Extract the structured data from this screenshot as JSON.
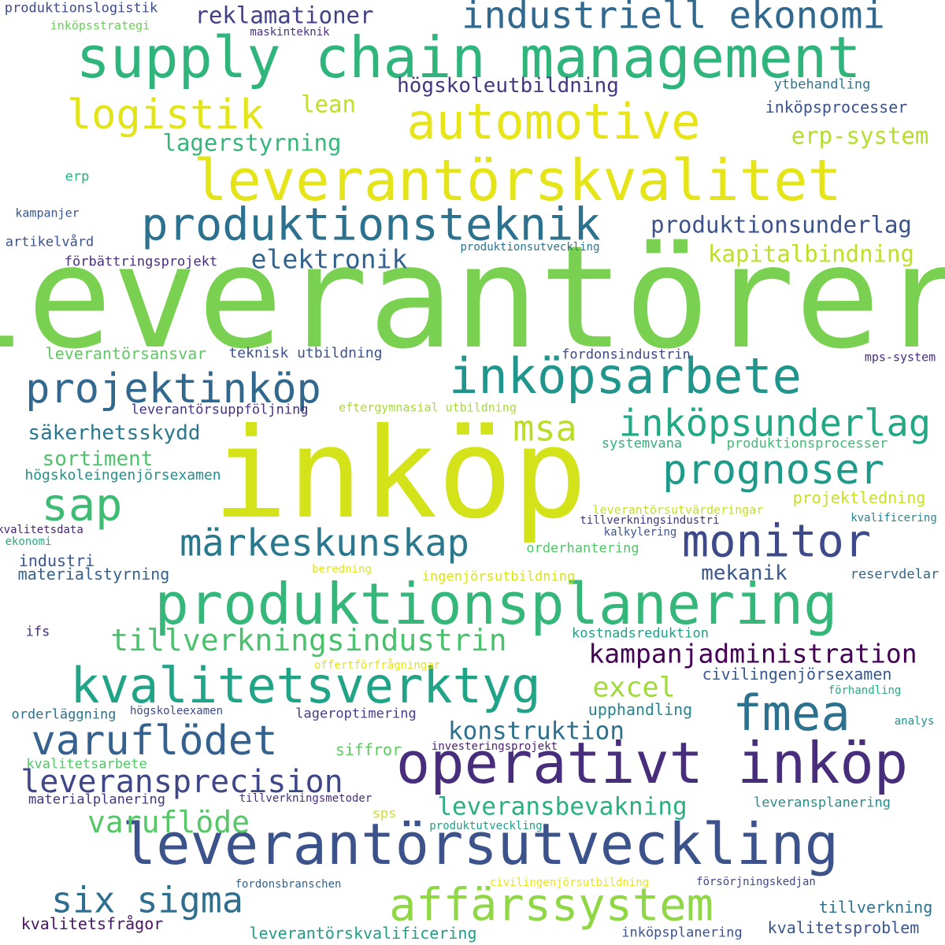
{
  "palette": {
    "dark_purple": "#46327e",
    "indigo": "#3b528b",
    "blue": "#2c728e",
    "teal": "#21918c",
    "green_teal": "#28ae80",
    "green": "#5ec962",
    "light_green": "#addc30",
    "yellow": "#dde318",
    "deep_purple": "#440154"
  },
  "words": [
    {
      "text": "leverantörer",
      "color": "#7ad151"
    },
    {
      "text": "inköp",
      "color": "#d4e21a"
    },
    {
      "text": "supply chain management",
      "color": "#2fb47c"
    },
    {
      "text": "leverantörskvalitet",
      "color": "#e5e419"
    },
    {
      "text": "produktionsplanering",
      "color": "#35b779"
    },
    {
      "text": "leverantörsutveckling",
      "color": "#3b528b"
    },
    {
      "text": "operativt inköp",
      "color": "#472d7b"
    },
    {
      "text": "automotive",
      "color": "#e7e419"
    },
    {
      "text": "inköpsarbete",
      "color": "#1f958b"
    },
    {
      "text": "kvalitetsverktyg",
      "color": "#20a386"
    },
    {
      "text": "fmea",
      "color": "#2c728e"
    },
    {
      "text": "produktionsteknik",
      "color": "#2c728e"
    },
    {
      "text": "affärssystem",
      "color": "#8fd744"
    },
    {
      "text": "monitor",
      "color": "#3e4989"
    },
    {
      "text": "projektinköp",
      "color": "#31688e"
    },
    {
      "text": "industriell ekonomi",
      "color": "#31688e"
    },
    {
      "text": "logistik",
      "color": "#e2e418"
    },
    {
      "text": "sap",
      "color": "#3dbc74"
    },
    {
      "text": "prognoser",
      "color": "#1f9a8a"
    },
    {
      "text": "varuflödet",
      "color": "#34618d"
    },
    {
      "text": "märkeskunskap",
      "color": "#2a788e"
    },
    {
      "text": "inköpsunderlag",
      "color": "#22a884"
    },
    {
      "text": "six sigma",
      "color": "#2e6e8e"
    },
    {
      "text": "msa",
      "color": "#bade28"
    },
    {
      "text": "leveransprecision",
      "color": "#3f4788"
    },
    {
      "text": "tillverkningsindustrin",
      "color": "#4ac16d"
    },
    {
      "text": "varuflöde",
      "color": "#56c667"
    },
    {
      "text": "kampanjadministration",
      "color": "#440154"
    },
    {
      "text": "elektronik",
      "color": "#33638d"
    },
    {
      "text": "excel",
      "color": "#a0da39"
    },
    {
      "text": "konstruktion",
      "color": "#2d708e"
    },
    {
      "text": "leveransbevakning",
      "color": "#2ab07f"
    },
    {
      "text": "produktionsunderlag",
      "color": "#3b528b"
    },
    {
      "text": "kapitalbindning",
      "color": "#bddf26"
    },
    {
      "text": "erp-system",
      "color": "#b5de2b"
    },
    {
      "text": "lagerstyrning",
      "color": "#35b779"
    },
    {
      "text": "reklamationer",
      "color": "#424086"
    },
    {
      "text": "högskoleutbildning",
      "color": "#453781"
    },
    {
      "text": "lean",
      "color": "#c2df23"
    },
    {
      "text": "säkerhetsskydd",
      "color": "#2a788e"
    },
    {
      "text": "sortiment",
      "color": "#4ec36b"
    },
    {
      "text": "mekanik",
      "color": "#39558c"
    },
    {
      "text": "leverantörsansvar",
      "color": "#5ec962"
    },
    {
      "text": "teknisk utbildning",
      "color": "#3b528b"
    },
    {
      "text": "fordonsindustrin",
      "color": "#3e4989"
    },
    {
      "text": "mps-system",
      "color": "#472f7d"
    },
    {
      "text": "leverantörsuppföljning",
      "color": "#46327e"
    },
    {
      "text": "eftergymnasial utbildning",
      "color": "#a8db34"
    },
    {
      "text": "högskoleingenjörsexamen",
      "color": "#21918c"
    },
    {
      "text": "systemvana",
      "color": "#2db27d"
    },
    {
      "text": "produktionsprocesser",
      "color": "#3dbc74"
    },
    {
      "text": "projektledning",
      "color": "#c8e020"
    },
    {
      "text": "leverantörsutvärderingar",
      "color": "#c5e021"
    },
    {
      "text": "tillverkningsindustri",
      "color": "#46337f"
    },
    {
      "text": "kvalitetsdata",
      "color": "#482475"
    },
    {
      "text": "ekonomi",
      "color": "#25ac82"
    },
    {
      "text": "kalkylering",
      "color": "#3b528b"
    },
    {
      "text": "kvalificering",
      "color": "#25838e"
    },
    {
      "text": "industri",
      "color": "#3a548c"
    },
    {
      "text": "materialstyrning",
      "color": "#34618d"
    },
    {
      "text": "orderhantering",
      "color": "#52c569"
    },
    {
      "text": "beredning",
      "color": "#e2e418"
    },
    {
      "text": "ingenjörsutbildning",
      "color": "#d8e219"
    },
    {
      "text": "reservdelar",
      "color": "#31688e"
    },
    {
      "text": "ifs",
      "color": "#472c7a"
    },
    {
      "text": "kostnadsreduktion",
      "color": "#1fa088"
    },
    {
      "text": "offertförfrågningar",
      "color": "#e5e419"
    },
    {
      "text": "civilingenjörsexamen",
      "color": "#38588c"
    },
    {
      "text": "förhandling",
      "color": "#25ac82"
    },
    {
      "text": "upphandling",
      "color": "#25848e"
    },
    {
      "text": "orderläggning",
      "color": "#2c728e"
    },
    {
      "text": "högskoleexamen",
      "color": "#3e4989"
    },
    {
      "text": "lageroptimering",
      "color": "#433e85"
    },
    {
      "text": "analys",
      "color": "#20928c"
    },
    {
      "text": "siffror",
      "color": "#5ec962"
    },
    {
      "text": "investeringsprojekt",
      "color": "#481f70"
    },
    {
      "text": "kvalitetsarbete",
      "color": "#52c569"
    },
    {
      "text": "materialplanering",
      "color": "#46337f"
    },
    {
      "text": "tillverkningsmetoder",
      "color": "#472d7b"
    },
    {
      "text": "sps",
      "color": "#d0e11c"
    },
    {
      "text": "leveransplanering",
      "color": "#218f8d"
    },
    {
      "text": "produktutveckling",
      "color": "#1f9e89"
    },
    {
      "text": "fordonsbranschen",
      "color": "#33638d"
    },
    {
      "text": "civilingenjörsutbildning",
      "color": "#eae51a"
    },
    {
      "text": "försörjningskedjan",
      "color": "#3f4889"
    },
    {
      "text": "tillverkning",
      "color": "#2c728e"
    },
    {
      "text": "kvalitetsfrågor",
      "color": "#481467"
    },
    {
      "text": "kvalitetsproblem",
      "color": "#39568c"
    },
    {
      "text": "leverantörskvalificering",
      "color": "#1f9e89"
    },
    {
      "text": "inköpsplanering",
      "color": "#3b528b"
    },
    {
      "text": "produktionslogistik",
      "color": "#3e4989"
    },
    {
      "text": "inköpsstrategi",
      "color": "#6ccd5a"
    },
    {
      "text": "maskinteknik",
      "color": "#472f7d"
    },
    {
      "text": "ytbehandling",
      "color": "#2a788e"
    },
    {
      "text": "inköpsprocesser",
      "color": "#3b528b"
    },
    {
      "text": "erp",
      "color": "#28ae80"
    },
    {
      "text": "kampanjer",
      "color": "#39568c"
    },
    {
      "text": "artikelvård",
      "color": "#3b528b"
    },
    {
      "text": "förbättringsprojekt",
      "color": "#472d7b"
    },
    {
      "text": "produktionsutveckling",
      "color": "#2c728e"
    }
  ]
}
